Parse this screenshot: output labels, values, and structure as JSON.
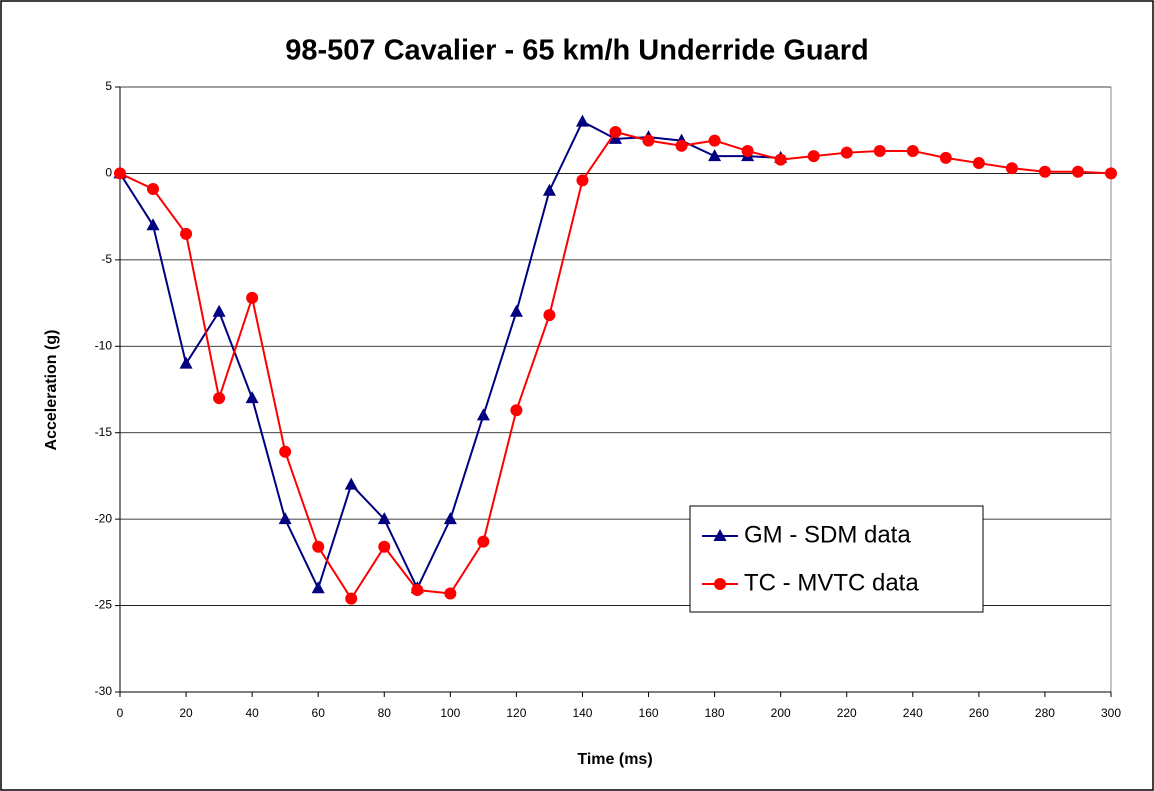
{
  "chart_data": {
    "type": "line",
    "title": "98-507 Cavalier  -  65 km/h Underride Guard",
    "x_label": "Time (ms)",
    "y_label": "Acceleration (g)",
    "xlim": [
      0,
      300
    ],
    "xticks": [
      0,
      20,
      40,
      60,
      80,
      100,
      120,
      140,
      160,
      180,
      200,
      220,
      240,
      260,
      280,
      300
    ],
    "ylim": [
      -30,
      5
    ],
    "yticks": [
      -30,
      -25,
      -20,
      -15,
      -10,
      -5,
      0,
      5
    ],
    "grid": true,
    "legend": "lower right",
    "series": [
      {
        "name": "GM - SDM data",
        "color": "#000080",
        "marker": "triangle",
        "x": [
          0,
          10,
          20,
          30,
          40,
          50,
          60,
          70,
          80,
          90,
          100,
          110,
          120,
          130,
          140,
          150,
          160,
          170,
          180,
          190,
          200
        ],
        "values": [
          0,
          -3,
          -11,
          -8,
          -13,
          -20,
          -24,
          -18,
          -20,
          -24,
          -20,
          -14,
          -8,
          -1,
          3,
          2,
          2.1,
          1.9,
          1,
          1,
          0.9
        ]
      },
      {
        "name": "TC - MVTC data",
        "color": "#ff0000",
        "marker": "circle",
        "x": [
          0,
          10,
          20,
          30,
          40,
          50,
          60,
          70,
          80,
          90,
          100,
          110,
          120,
          130,
          140,
          150,
          160,
          170,
          180,
          190,
          200,
          210,
          220,
          230,
          240,
          250,
          260,
          270,
          280,
          290,
          300
        ],
        "values": [
          0,
          -0.9,
          -3.5,
          -13,
          -7.2,
          -16.1,
          -21.6,
          -24.6,
          -21.6,
          -24.1,
          -24.3,
          -21.3,
          -13.7,
          -8.2,
          -0.4,
          2.4,
          1.9,
          1.6,
          1.9,
          1.3,
          0.8,
          1.0,
          1.2,
          1.3,
          1.3,
          0.9,
          0.6,
          0.3,
          0.1,
          0.1,
          0
        ]
      }
    ]
  }
}
